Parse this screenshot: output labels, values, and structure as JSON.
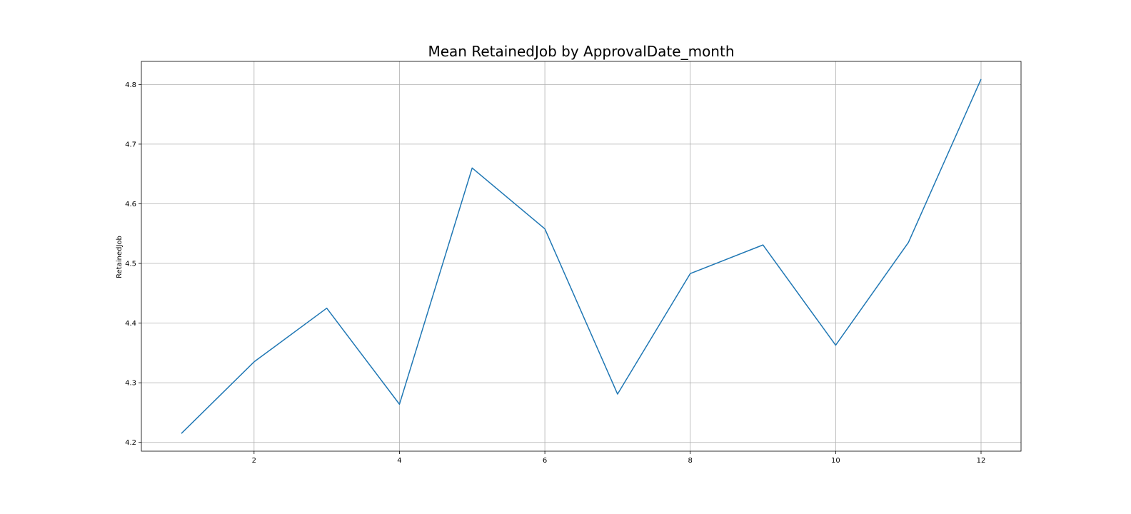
{
  "chart_data": {
    "type": "line",
    "title": "Mean RetainedJob by ApprovalDate_month",
    "xlabel": "",
    "ylabel": "RetainedJob",
    "x": [
      1,
      2,
      3,
      4,
      5,
      6,
      7,
      8,
      9,
      10,
      11,
      12
    ],
    "series": [
      {
        "values": [
          4.215,
          4.335,
          4.425,
          4.264,
          4.66,
          4.558,
          4.281,
          4.483,
          4.531,
          4.363,
          4.535,
          4.809
        ],
        "color": "#1f77b4"
      }
    ],
    "xticks": [
      2,
      4,
      6,
      8,
      10,
      12
    ],
    "yticks": [
      4.2,
      4.3,
      4.4,
      4.5,
      4.6,
      4.7,
      4.8
    ],
    "xtick_labels": [
      "2",
      "4",
      "6",
      "8",
      "10",
      "12"
    ],
    "ytick_labels": [
      "4.2",
      "4.3",
      "4.4",
      "4.5",
      "4.6",
      "4.7",
      "4.8"
    ],
    "xlim": [
      0.45,
      12.55
    ],
    "ylim": [
      4.1853,
      4.8387
    ],
    "grid": true,
    "legend": "none"
  }
}
